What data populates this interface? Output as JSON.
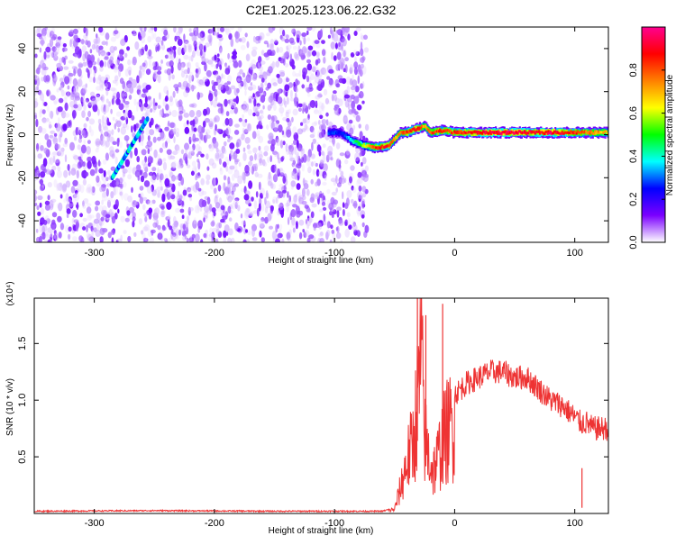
{
  "chart_data": [
    {
      "type": "heatmap",
      "title": "C2E1.2025.123.06.22.G32",
      "xlabel": "Height of straight line (km)",
      "ylabel": "Frequency (Hz)",
      "xlim": [
        -350,
        128
      ],
      "ylim": [
        -50,
        50
      ],
      "xticks": [
        -300,
        -200,
        -100,
        0,
        100
      ],
      "yticks": [
        -40,
        -20,
        0,
        20,
        40
      ],
      "colorbar": {
        "label": "Normalized spectral amplitude",
        "range": [
          0,
          1
        ],
        "ticks": [
          "0.0",
          "0.2",
          "0.4",
          "0.6",
          "0.8"
        ],
        "tick_values": [
          0,
          0.2,
          0.4,
          0.6,
          0.8
        ],
        "colors": [
          "#ffffff",
          "#7b00ff",
          "#0000ff",
          "#00ffff",
          "#00ff00",
          "#ffff00",
          "#ff8000",
          "#ff0000",
          "#ff0090"
        ]
      },
      "noise_region": {
        "x": [
          -350,
          -73
        ],
        "freq": [
          -50,
          50
        ],
        "amplitude": [
          0.0,
          0.15
        ]
      },
      "signal_track": {
        "x": [
          -105,
          -95,
          -85,
          -75,
          -65,
          -55,
          -50,
          -45,
          -40,
          -30,
          -25,
          -20,
          -10,
          0,
          20,
          40,
          60,
          80,
          100,
          128
        ],
        "freq": [
          1,
          1,
          -3,
          -5,
          -6,
          -5,
          -2,
          1,
          1,
          3,
          4,
          1,
          2,
          1,
          1,
          1,
          1,
          1,
          1,
          1
        ],
        "amplitude": [
          0.3,
          0.25,
          0.4,
          0.6,
          0.85,
          0.9,
          0.7,
          0.75,
          0.85,
          0.9,
          0.7,
          0.8,
          0.85,
          0.85,
          0.9,
          0.95,
          0.9,
          0.95,
          0.85,
          0.7
        ]
      },
      "grid": false
    },
    {
      "type": "line",
      "xlabel": "Height of straight line (km)",
      "ylabel": "SNR (10 * v/v)",
      "y_multiplier": "(x10⁴)",
      "xlim": [
        -350,
        128
      ],
      "ylim": [
        0,
        1.9
      ],
      "xticks": [
        -300,
        -200,
        -100,
        0,
        100
      ],
      "yticks": [
        "0.5",
        "1.0",
        "1.5"
      ],
      "ytick_values": [
        0.5,
        1.0,
        1.5
      ],
      "color": "#ee3333",
      "envelope": {
        "x": [
          -350,
          -250,
          -150,
          -60,
          -50,
          -45,
          -40,
          -35,
          -30,
          -28,
          -25,
          -22,
          -18,
          -15,
          -10,
          -5,
          0,
          10,
          20,
          30,
          40,
          50,
          60,
          70,
          80,
          90,
          100,
          105,
          110,
          115,
          120,
          128
        ],
        "y": [
          0.02,
          0.025,
          0.02,
          0.02,
          0.05,
          0.3,
          0.6,
          0.8,
          1.4,
          1.9,
          0.9,
          0.7,
          0.5,
          0.6,
          0.85,
          1.0,
          1.05,
          1.15,
          1.2,
          1.25,
          1.25,
          1.2,
          1.2,
          1.1,
          1.0,
          0.95,
          0.85,
          0.8,
          0.8,
          0.75,
          0.75,
          0.75
        ]
      },
      "spikes": [
        {
          "x": -31,
          "y": 1.9
        },
        {
          "x": -24,
          "y": 1.75
        },
        {
          "x": -10,
          "y": 1.85
        },
        {
          "x": 106,
          "y": 0.05
        }
      ],
      "grid": false
    }
  ]
}
